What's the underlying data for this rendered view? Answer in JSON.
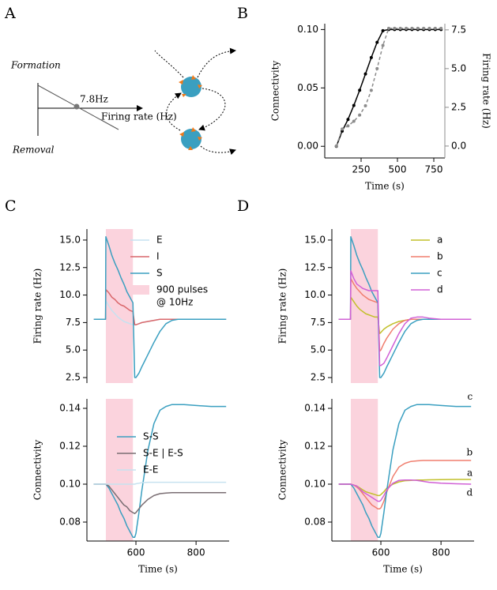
{
  "panel_labels": [
    "A",
    "B",
    "C",
    "D"
  ],
  "diagram": {
    "formation": "Formation",
    "removal": "Removal",
    "setpoint": "7.8Hz",
    "axis_label": "Firing rate (Hz)"
  },
  "chart_data": [
    {
      "type": "line",
      "markers": true,
      "xlabel": "Time (s)",
      "ylabel": "Connectivity",
      "y2label": "Firing rate (Hz)",
      "y2color": "#8c8c8c",
      "x": [
        80,
        120,
        160,
        200,
        240,
        280,
        320,
        360,
        400,
        440,
        480,
        520,
        560,
        600,
        640,
        680,
        720,
        760,
        800
      ],
      "xlim": [
        0,
        826
      ],
      "xticks": [
        250,
        500,
        750
      ],
      "ylim": [
        -0.01,
        0.105
      ],
      "yticks": [
        {
          "value": 0,
          "label": "0.00"
        },
        0.05,
        {
          "value": 0.1,
          "label": "0.10"
        }
      ],
      "y2lim": [
        -0.77,
        7.9
      ],
      "y2ticks": [
        {
          "value": 0,
          "label": "0.0"
        },
        2.5,
        {
          "value": 5,
          "label": "5.0"
        },
        7.5
      ],
      "series": [
        {
          "color": "#000000",
          "linestyle": "solid",
          "values": [
            0,
            0.013,
            0.023,
            0.035,
            0.048,
            0.062,
            0.076,
            0.089,
            0.099,
            0.1,
            0.1,
            0.1,
            0.1,
            0.1,
            0.1,
            0.1,
            0.1,
            0.1,
            0.1
          ]
        },
        {
          "color": "#8c8c8c",
          "linestyle": "dashed",
          "axis": "y2",
          "values": [
            0,
            1.1,
            1.3,
            1.6,
            2.0,
            2.6,
            3.6,
            5.0,
            6.5,
            7.6,
            7.6,
            7.6,
            7.6,
            7.6,
            7.6,
            7.6,
            7.6,
            7.6,
            7.6
          ]
        }
      ]
    },
    {
      "type": "line",
      "ylabel": "Firing rate (Hz)",
      "x": [
        460,
        499,
        500,
        510,
        520,
        530,
        540,
        550,
        560,
        570,
        580,
        590,
        596,
        600,
        610,
        620,
        640,
        660,
        680,
        700,
        720,
        740,
        760,
        800,
        850,
        900
      ],
      "xlim": [
        437,
        910
      ],
      "ylim": [
        2.0,
        16.0
      ],
      "yticks": [
        2.5,
        {
          "value": 5,
          "label": "5.0"
        },
        7.5,
        {
          "value": 10,
          "label": "10.0"
        },
        12.5,
        {
          "value": 15,
          "label": "15.0"
        }
      ],
      "shade": [
        500,
        590
      ],
      "shade_color": "#fbd3dd",
      "shade_label": [
        "900 pulses",
        "@ 10Hz"
      ],
      "legend": "upper right",
      "series": [
        {
          "name": "E",
          "color": "#c6e2f0",
          "values": [
            7.8,
            7.8,
            9.5,
            9.0,
            8.6,
            8.3,
            8.0,
            7.8,
            7.6,
            7.5,
            7.4,
            7.3,
            7.3,
            7.3,
            7.4,
            7.5,
            7.6,
            7.7,
            7.8,
            7.8,
            7.8,
            7.8,
            7.8,
            7.8,
            7.8,
            7.8
          ]
        },
        {
          "name": "I",
          "color": "#d9676b",
          "values": [
            7.8,
            7.8,
            10.5,
            10.2,
            9.8,
            9.6,
            9.3,
            9.1,
            9.0,
            8.8,
            8.6,
            8.5,
            7.3,
            7.3,
            7.4,
            7.5,
            7.6,
            7.7,
            7.8,
            7.8,
            7.8,
            7.8,
            7.8,
            7.8,
            7.8,
            7.8
          ]
        },
        {
          "name": "S",
          "color": "#3a9fc0",
          "values": [
            7.8,
            7.8,
            15.3,
            14.5,
            13.6,
            12.9,
            12.3,
            11.6,
            11.0,
            10.3,
            9.8,
            9.3,
            2.5,
            2.5,
            2.9,
            3.5,
            4.6,
            5.7,
            6.7,
            7.4,
            7.7,
            7.8,
            7.8,
            7.8,
            7.8,
            7.8
          ]
        }
      ]
    },
    {
      "type": "line",
      "xlabel": "Time (s)",
      "ylabel": "Connectivity",
      "x": [
        460,
        499,
        500,
        510,
        520,
        530,
        540,
        550,
        560,
        570,
        580,
        590,
        596,
        600,
        610,
        620,
        640,
        660,
        680,
        700,
        720,
        740,
        760,
        800,
        850,
        900
      ],
      "xlim": [
        437,
        910
      ],
      "xticks": [
        600,
        800
      ],
      "ylim": [
        0.07,
        0.145
      ],
      "yticks": [
        0.08,
        {
          "value": 0.1,
          "label": "0.10"
        },
        0.12,
        0.14
      ],
      "shade": [
        500,
        590
      ],
      "shade_color": "#fbd3dd",
      "legend": "center right",
      "series": [
        {
          "name": "S-S",
          "color": "#3a9fc0",
          "values": [
            0.1,
            0.1,
            0.1,
            0.098,
            0.095,
            0.092,
            0.089,
            0.085,
            0.082,
            0.078,
            0.075,
            0.072,
            0.072,
            0.074,
            0.085,
            0.097,
            0.118,
            0.132,
            0.139,
            0.141,
            0.142,
            0.142,
            0.142,
            0.1415,
            0.141,
            0.141
          ]
        },
        {
          "name": "S-E | E-S",
          "color": "#7a6e73",
          "values": [
            0.1,
            0.1,
            0.1,
            0.099,
            0.097,
            0.095,
            0.093,
            0.091,
            0.089,
            0.088,
            0.086,
            0.085,
            0.0845,
            0.085,
            0.087,
            0.089,
            0.092,
            0.094,
            0.095,
            0.0953,
            0.0955,
            0.0955,
            0.0955,
            0.0955,
            0.0955,
            0.0955
          ]
        },
        {
          "name": "E-E",
          "color": "#c6e2f0",
          "values": [
            0.1,
            0.1,
            0.1,
            0.1,
            0.1,
            0.1,
            0.1,
            0.1,
            0.1,
            0.1,
            0.1,
            0.1,
            0.1,
            0.1002,
            0.1005,
            0.1008,
            0.101,
            0.101,
            0.101,
            0.101,
            0.101,
            0.101,
            0.101,
            0.101,
            0.101,
            0.101
          ]
        }
      ]
    },
    {
      "type": "line",
      "ylabel": "Firing rate (Hz)",
      "x": [
        460,
        499,
        500,
        510,
        520,
        530,
        540,
        550,
        560,
        570,
        580,
        590,
        596,
        600,
        610,
        620,
        640,
        660,
        680,
        700,
        720,
        740,
        760,
        800,
        850,
        900
      ],
      "xlim": [
        437,
        910
      ],
      "ylim": [
        2.0,
        16.0
      ],
      "yticks": [
        2.5,
        {
          "value": 5,
          "label": "5.0"
        },
        7.5,
        {
          "value": 10,
          "label": "10.0"
        },
        12.5,
        {
          "value": 15,
          "label": "15.0"
        }
      ],
      "shade": [
        500,
        590
      ],
      "shade_color": "#fbd3dd",
      "legend": "upper right",
      "series": [
        {
          "name": "a",
          "color": "#c2c02b",
          "values": [
            7.8,
            7.8,
            9.8,
            9.4,
            9.0,
            8.7,
            8.5,
            8.3,
            8.2,
            8.1,
            8.0,
            8.0,
            6.5,
            6.6,
            6.9,
            7.1,
            7.4,
            7.6,
            7.7,
            7.8,
            7.8,
            7.8,
            7.8,
            7.8,
            7.8,
            7.8
          ]
        },
        {
          "name": "b",
          "color": "#f07e6e",
          "values": [
            7.8,
            7.8,
            11.5,
            11.0,
            10.6,
            10.3,
            10.0,
            9.8,
            9.6,
            9.5,
            9.4,
            9.3,
            4.9,
            5.0,
            5.6,
            6.1,
            6.9,
            7.4,
            7.7,
            7.8,
            7.8,
            7.8,
            7.8,
            7.8,
            7.8,
            7.8
          ]
        },
        {
          "name": "c",
          "color": "#3a9fc0",
          "values": [
            7.8,
            7.8,
            15.3,
            14.5,
            13.6,
            12.9,
            12.3,
            11.6,
            11.0,
            10.3,
            9.8,
            9.3,
            2.5,
            2.5,
            2.9,
            3.5,
            4.6,
            5.7,
            6.7,
            7.4,
            7.7,
            7.8,
            7.8,
            7.8,
            7.8,
            7.8
          ]
        },
        {
          "name": "d",
          "color": "#d160d6",
          "values": [
            7.8,
            7.8,
            12.2,
            11.5,
            11.0,
            10.8,
            10.6,
            10.5,
            10.4,
            10.4,
            10.4,
            10.4,
            3.6,
            3.6,
            3.8,
            4.3,
            5.4,
            6.5,
            7.4,
            7.9,
            8.0,
            8.0,
            7.9,
            7.8,
            7.8,
            7.8
          ]
        }
      ]
    },
    {
      "type": "line",
      "xlabel": "Time (s)",
      "ylabel": "Connectivity",
      "x": [
        460,
        499,
        500,
        510,
        520,
        530,
        540,
        550,
        560,
        570,
        580,
        590,
        596,
        600,
        610,
        620,
        640,
        660,
        680,
        700,
        720,
        740,
        760,
        800,
        850,
        900
      ],
      "xlim": [
        437,
        910
      ],
      "xticks": [
        600,
        800
      ],
      "ylim": [
        0.07,
        0.145
      ],
      "yticks": [
        0.08,
        {
          "value": 0.1,
          "label": "0.10"
        },
        0.12,
        0.14
      ],
      "shade": [
        500,
        590
      ],
      "shade_color": "#fbd3dd",
      "legend": "end",
      "series": [
        {
          "name": "a",
          "color": "#c2c02b",
          "values": [
            0.1,
            0.1,
            0.1,
            0.0995,
            0.099,
            0.098,
            0.097,
            0.096,
            0.0955,
            0.095,
            0.0945,
            0.094,
            0.094,
            0.0945,
            0.096,
            0.098,
            0.1,
            0.1012,
            0.1018,
            0.102,
            0.1022,
            0.1022,
            0.1023,
            0.1024,
            0.1025,
            0.1025
          ]
        },
        {
          "name": "b",
          "color": "#f07e6e",
          "values": [
            0.1,
            0.1,
            0.1,
            0.0995,
            0.0985,
            0.097,
            0.095,
            0.093,
            0.091,
            0.089,
            0.088,
            0.087,
            0.087,
            0.0875,
            0.091,
            0.096,
            0.104,
            0.109,
            0.111,
            0.112,
            0.1123,
            0.1125,
            0.1125,
            0.1125,
            0.1125,
            0.1125
          ]
        },
        {
          "name": "c",
          "color": "#3a9fc0",
          "values": [
            0.1,
            0.1,
            0.1,
            0.098,
            0.095,
            0.092,
            0.089,
            0.085,
            0.082,
            0.078,
            0.075,
            0.072,
            0.072,
            0.074,
            0.085,
            0.097,
            0.118,
            0.132,
            0.139,
            0.141,
            0.142,
            0.142,
            0.142,
            0.1415,
            0.141,
            0.141
          ]
        },
        {
          "name": "d",
          "color": "#d160d6",
          "values": [
            0.1,
            0.1,
            0.1,
            0.0995,
            0.099,
            0.0975,
            0.096,
            0.095,
            0.094,
            0.093,
            0.092,
            0.091,
            0.091,
            0.0915,
            0.094,
            0.097,
            0.1005,
            0.102,
            0.1022,
            0.1022,
            0.102,
            0.1015,
            0.101,
            0.1005,
            0.1002,
            0.1
          ]
        }
      ]
    }
  ]
}
